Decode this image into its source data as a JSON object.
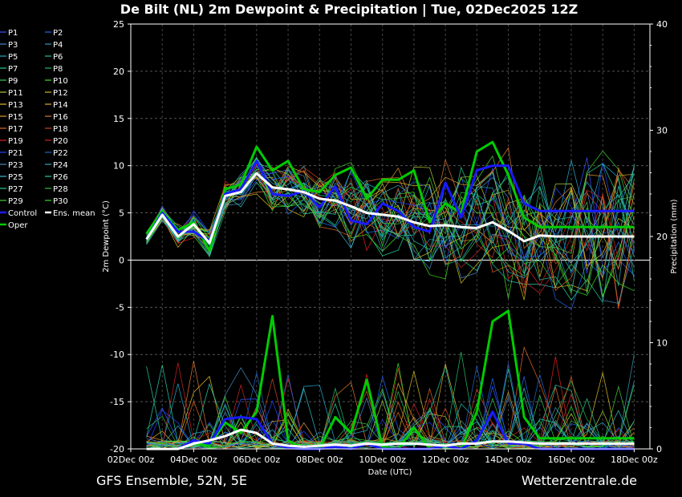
{
  "chart_data": {
    "type": "line",
    "title": "De Bilt  (NL)  2m Dewpoint & Precipitation | Tue, 02Dec2025 12Z",
    "ylabel_left": "2m Dewpoint (°C)",
    "ylabel_right": "Precipitation (mm)",
    "xlabel": "Date (UTC)",
    "ylim_left": [
      -20,
      25
    ],
    "ylim_right": [
      0,
      40
    ],
    "left_ticks": [
      "25",
      "20",
      "15",
      "10",
      "5",
      "0",
      "-5",
      "-10",
      "-15",
      "-20"
    ],
    "right_ticks": [
      "40",
      "30",
      "20",
      "10",
      "0"
    ],
    "x_tick_labels": [
      "02Dec 00z",
      "04Dec 00z",
      "06Dec 00z",
      "08Dec 00z",
      "10Dec 00z",
      "12Dec 00z",
      "14Dec 00z",
      "16Dec 00z",
      "18Dec 00z"
    ],
    "grid": true,
    "legend_position": "left",
    "footer_left": "GFS Ensemble, 52N, 5E",
    "footer_right": "Wetterzentrale.de",
    "x_days": [
      0.5,
      1,
      1.5,
      2,
      2.5,
      3,
      3.5,
      4,
      4.5,
      5,
      5.5,
      6,
      6.5,
      7,
      7.5,
      8,
      8.5,
      9,
      9.5,
      10,
      10.5,
      11,
      11.5,
      12,
      12.5,
      13,
      13.5,
      14,
      14.5,
      15,
      15.5,
      16
    ],
    "series": [
      {
        "name": "Ens. mean",
        "color": "#ffffff",
        "highlight": true,
        "dewpoint": [
          2.2,
          4.8,
          2.5,
          3.8,
          1.8,
          6.8,
          7.2,
          9.2,
          7.7,
          7.5,
          7.2,
          6.5,
          6.3,
          5.7,
          5.0,
          4.8,
          4.6,
          4.0,
          3.6,
          3.7,
          3.5,
          3.4,
          4.0,
          3.1,
          2.0,
          2.6,
          2.5,
          2.5,
          2.5,
          2.5,
          2.5,
          2.5
        ],
        "precip": [
          0,
          0,
          0,
          0.5,
          0.8,
          1.2,
          1.8,
          1.5,
          0.5,
          0.3,
          0.2,
          0.3,
          0.4,
          0.3,
          0.5,
          0.4,
          0.5,
          0.5,
          0.4,
          0.3,
          0.5,
          0.5,
          0.7,
          0.7,
          0.6,
          0.5,
          0.5,
          0.5,
          0.5,
          0.5,
          0.5,
          0.5
        ]
      },
      {
        "name": "Control",
        "color": "#1a1aff",
        "highlight": true,
        "dewpoint": [
          2.2,
          5.0,
          3.0,
          3.0,
          2.0,
          7.0,
          7.5,
          10.5,
          7.0,
          6.8,
          7.3,
          5.6,
          7.8,
          4.2,
          3.8,
          6.0,
          5.2,
          3.5,
          3.0,
          8.2,
          4.5,
          9.5,
          10.0,
          10.0,
          6.0,
          5.2,
          5.2,
          5.2,
          5.2,
          5.2,
          5.2,
          5.2
        ],
        "precip": [
          0,
          0,
          0,
          0.8,
          0.5,
          2.8,
          3.0,
          2.8,
          0.5,
          0.1,
          0,
          0,
          0.2,
          0,
          0.5,
          0,
          0,
          0,
          0,
          0.3,
          0,
          0.8,
          3.5,
          0.5,
          0.5,
          0,
          0,
          0,
          0,
          0,
          0,
          0
        ]
      },
      {
        "name": "Oper",
        "color": "#00cc00",
        "highlight": true,
        "dewpoint": [
          2.8,
          5.2,
          3.2,
          4.0,
          1.0,
          7.5,
          8.0,
          12.0,
          9.5,
          10.5,
          7.5,
          7.2,
          9.0,
          9.8,
          6.5,
          8.5,
          8.5,
          9.5,
          4.0,
          6.0,
          5.0,
          11.5,
          12.5,
          9.0,
          4.5,
          3.5,
          3.5,
          3.5,
          3.5,
          3.5,
          3.5,
          3.5
        ],
        "precip": [
          0,
          0,
          0,
          0.5,
          0.3,
          2.5,
          1.5,
          3.5,
          12.5,
          0.8,
          0,
          0,
          3.0,
          1.5,
          6.5,
          0.2,
          0,
          2.0,
          0,
          0.3,
          0,
          3.5,
          12.0,
          13.0,
          3.0,
          1.0,
          1.0,
          1.0,
          1.0,
          1.0,
          1.0,
          1.0
        ]
      },
      {
        "name": "P1",
        "color": "#3355ff"
      },
      {
        "name": "P2",
        "color": "#2266ee"
      },
      {
        "name": "P3",
        "color": "#4488cc"
      },
      {
        "name": "P4",
        "color": "#3399bb"
      },
      {
        "name": "P5",
        "color": "#22aacc"
      },
      {
        "name": "P6",
        "color": "#22bbaa"
      },
      {
        "name": "P7",
        "color": "#22cc99"
      },
      {
        "name": "P8",
        "color": "#22bb66"
      },
      {
        "name": "P9",
        "color": "#33cc55"
      },
      {
        "name": "P10",
        "color": "#44dd22"
      },
      {
        "name": "P11",
        "color": "#aacc33"
      },
      {
        "name": "P12",
        "color": "#ccbb22"
      },
      {
        "name": "P13",
        "color": "#ddbb22"
      },
      {
        "name": "P14",
        "color": "#ddaa22"
      },
      {
        "name": "P15",
        "color": "#dd9933"
      },
      {
        "name": "P16",
        "color": "#dd7733"
      },
      {
        "name": "P17",
        "color": "#dd6622"
      },
      {
        "name": "P18",
        "color": "#cc4422"
      },
      {
        "name": "P19",
        "color": "#dd2222"
      },
      {
        "name": "P20",
        "color": "#cc2222"
      },
      {
        "name": "P21",
        "color": "#2244ff"
      },
      {
        "name": "P22",
        "color": "#2266cc"
      },
      {
        "name": "P23",
        "color": "#4488bb"
      },
      {
        "name": "P24",
        "color": "#33aabb"
      },
      {
        "name": "P25",
        "color": "#33bbcc"
      },
      {
        "name": "P26",
        "color": "#22ccaa"
      },
      {
        "name": "P27",
        "color": "#22cc88"
      },
      {
        "name": "P28",
        "color": "#33bb44"
      },
      {
        "name": "P29",
        "color": "#44cc33"
      },
      {
        "name": "P30",
        "color": "#33dd22"
      }
    ]
  }
}
